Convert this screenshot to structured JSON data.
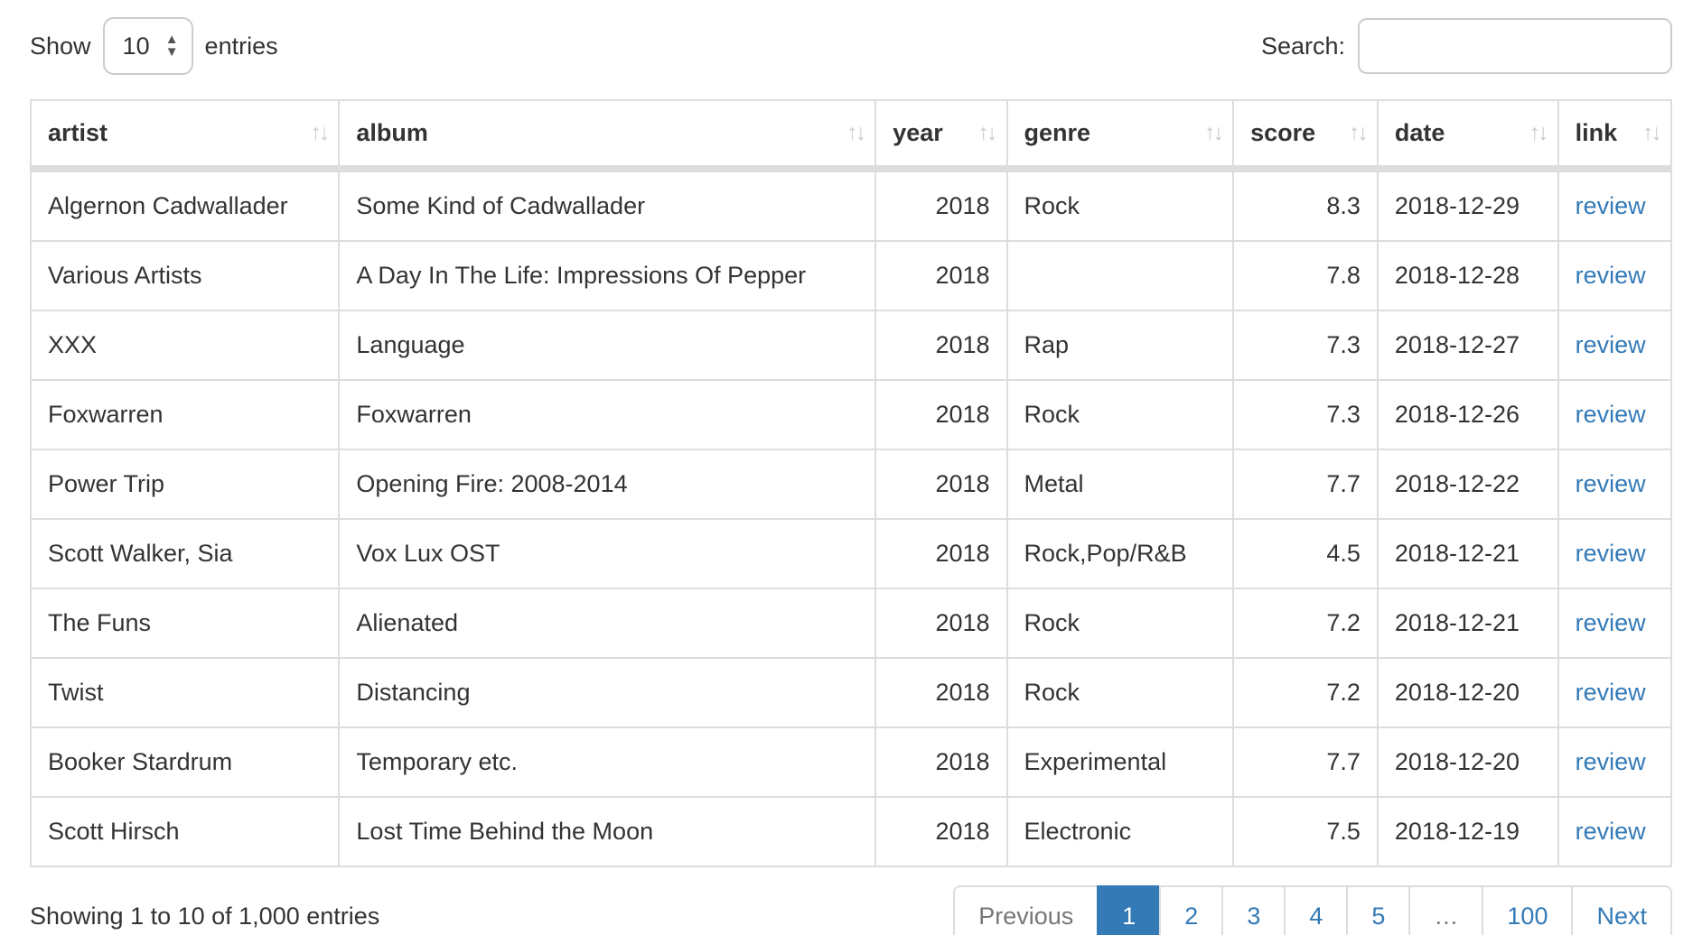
{
  "controls": {
    "show_label": "Show",
    "page_length": "10",
    "entries_label": "entries",
    "search_label": "Search:",
    "search_value": "",
    "select_stepper_icon": "select-stepper-icon",
    "sort_icon_glyph": "↑↓"
  },
  "table": {
    "columns": [
      {
        "key": "artist",
        "label": "artist",
        "align": "left"
      },
      {
        "key": "album",
        "label": "album",
        "align": "left"
      },
      {
        "key": "year",
        "label": "year",
        "align": "right"
      },
      {
        "key": "genre",
        "label": "genre",
        "align": "left"
      },
      {
        "key": "score",
        "label": "score",
        "align": "right"
      },
      {
        "key": "date",
        "label": "date",
        "align": "left"
      },
      {
        "key": "link",
        "label": "link",
        "align": "left"
      }
    ],
    "rows": [
      {
        "artist": "Algernon Cadwallader",
        "album": "Some Kind of Cadwallader",
        "year": "2018",
        "genre": "Rock",
        "score": "8.3",
        "date": "2018-12-29",
        "link": "review"
      },
      {
        "artist": "Various Artists",
        "album": "A Day In The Life: Impressions Of Pepper",
        "year": "2018",
        "genre": "",
        "score": "7.8",
        "date": "2018-12-28",
        "link": "review"
      },
      {
        "artist": "XXX",
        "album": "Language",
        "year": "2018",
        "genre": "Rap",
        "score": "7.3",
        "date": "2018-12-27",
        "link": "review"
      },
      {
        "artist": "Foxwarren",
        "album": "Foxwarren",
        "year": "2018",
        "genre": "Rock",
        "score": "7.3",
        "date": "2018-12-26",
        "link": "review"
      },
      {
        "artist": "Power Trip",
        "album": "Opening Fire: 2008-2014",
        "year": "2018",
        "genre": "Metal",
        "score": "7.7",
        "date": "2018-12-22",
        "link": "review"
      },
      {
        "artist": "Scott Walker, Sia",
        "album": "Vox Lux OST",
        "year": "2018",
        "genre": "Rock,Pop/R&B",
        "score": "4.5",
        "date": "2018-12-21",
        "link": "review"
      },
      {
        "artist": "The Funs",
        "album": "Alienated",
        "year": "2018",
        "genre": "Rock",
        "score": "7.2",
        "date": "2018-12-21",
        "link": "review"
      },
      {
        "artist": "Twist",
        "album": "Distancing",
        "year": "2018",
        "genre": "Rock",
        "score": "7.2",
        "date": "2018-12-20",
        "link": "review"
      },
      {
        "artist": "Booker Stardrum",
        "album": "Temporary etc.",
        "year": "2018",
        "genre": "Experimental",
        "score": "7.7",
        "date": "2018-12-20",
        "link": "review"
      },
      {
        "artist": "Scott Hirsch",
        "album": "Lost Time Behind the Moon",
        "year": "2018",
        "genre": "Electronic",
        "score": "7.5",
        "date": "2018-12-19",
        "link": "review"
      }
    ]
  },
  "footer": {
    "info": "Showing 1 to 10 of 1,000 entries",
    "pagination": [
      {
        "label": "Previous",
        "state": "disabled"
      },
      {
        "label": "1",
        "state": "active"
      },
      {
        "label": "2",
        "state": "link"
      },
      {
        "label": "3",
        "state": "link"
      },
      {
        "label": "4",
        "state": "link"
      },
      {
        "label": "5",
        "state": "link"
      },
      {
        "label": "…",
        "state": "disabled"
      },
      {
        "label": "100",
        "state": "link"
      },
      {
        "label": "Next",
        "state": "link"
      }
    ]
  },
  "colors": {
    "accent": "#337ab7",
    "border": "#dddddd",
    "text": "#333333",
    "muted": "#777777",
    "sort_icon": "#cccccc"
  }
}
